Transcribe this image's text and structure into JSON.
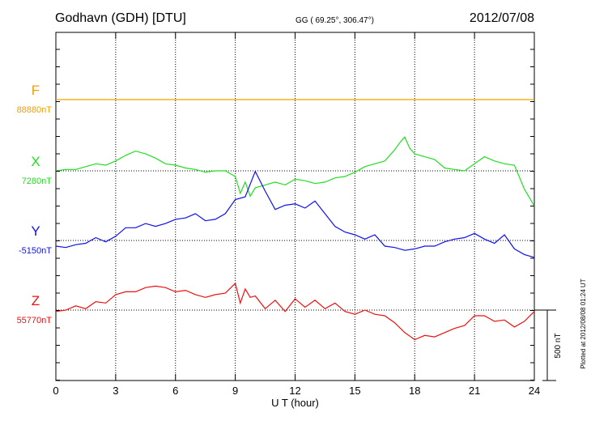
{
  "header": {
    "station": "Godhavn (GDH)  [DTU]",
    "coords": "GG ( 69.25°, 306.47°)",
    "date": "2012/07/08"
  },
  "side_note": "Plotted at 2012/08/08 01:24 UT",
  "chart_data": {
    "type": "line",
    "xlabel": "U T (hour)",
    "xlim": [
      0,
      24
    ],
    "x_ticks": [
      "0",
      "3",
      "6",
      "9",
      "12",
      "15",
      "18",
      "21",
      "24"
    ],
    "scale_bar": {
      "label": "500 nT",
      "value_nT": 500
    },
    "series": [
      {
        "name": "F",
        "baseline_label": "88880nT",
        "baseline_nT": 88880,
        "color": "#f0a000",
        "x": [
          0,
          24
        ],
        "y": [
          88880,
          88880
        ]
      },
      {
        "name": "X",
        "baseline_label": "7280nT",
        "baseline_nT": 7280,
        "color": "#22dd22",
        "x": [
          0,
          0.5,
          1,
          1.5,
          2,
          2.5,
          3,
          3.5,
          4,
          4.5,
          5,
          5.5,
          6,
          6.5,
          7,
          7.5,
          8,
          8.5,
          9,
          9.25,
          9.5,
          9.75,
          10,
          10.5,
          11,
          11.5,
          12,
          12.5,
          13,
          13.5,
          14,
          14.5,
          15,
          15.5,
          16,
          16.5,
          17,
          17.25,
          17.5,
          17.75,
          18,
          18.5,
          19,
          19.5,
          20,
          20.5,
          21,
          21.5,
          22,
          22.5,
          23,
          23.5,
          24
        ],
        "y": [
          7280,
          7290,
          7290,
          7310,
          7330,
          7320,
          7350,
          7390,
          7420,
          7400,
          7370,
          7330,
          7320,
          7300,
          7290,
          7270,
          7280,
          7280,
          7240,
          7120,
          7200,
          7100,
          7160,
          7180,
          7200,
          7180,
          7220,
          7210,
          7190,
          7200,
          7230,
          7240,
          7270,
          7310,
          7330,
          7350,
          7430,
          7480,
          7520,
          7440,
          7400,
          7380,
          7360,
          7300,
          7290,
          7280,
          7330,
          7380,
          7350,
          7330,
          7320,
          7150,
          7030
        ]
      },
      {
        "name": "Y",
        "baseline_label": "-5150nT",
        "baseline_nT": -5150,
        "color": "#1010ee",
        "x": [
          0,
          0.5,
          1,
          1.5,
          2,
          2.5,
          3,
          3.5,
          4,
          4.5,
          5,
          5.5,
          6,
          6.5,
          7,
          7.5,
          8,
          8.5,
          9,
          9.5,
          10,
          10.5,
          11,
          11.5,
          12,
          12.5,
          13,
          13.5,
          14,
          14.5,
          15,
          15.5,
          16,
          16.5,
          17,
          17.5,
          18,
          18.5,
          19,
          19.5,
          20,
          20.5,
          21,
          21.5,
          22,
          22.5,
          23,
          23.5,
          24
        ],
        "y": [
          -5190,
          -5200,
          -5180,
          -5170,
          -5130,
          -5160,
          -5120,
          -5060,
          -5060,
          -5030,
          -5050,
          -5030,
          -5000,
          -4990,
          -4960,
          -5010,
          -5000,
          -4960,
          -4860,
          -4840,
          -4660,
          -4800,
          -4930,
          -4900,
          -4890,
          -4920,
          -4870,
          -4960,
          -5050,
          -5090,
          -5110,
          -5140,
          -5110,
          -5190,
          -5200,
          -5220,
          -5210,
          -5190,
          -5190,
          -5160,
          -5140,
          -5130,
          -5100,
          -5140,
          -5170,
          -5110,
          -5210,
          -5250,
          -5270
        ]
      },
      {
        "name": "Z",
        "baseline_label": "55770nT",
        "baseline_nT": 55770,
        "color": "#ee1111",
        "x": [
          0,
          0.5,
          1,
          1.5,
          2,
          2.5,
          3,
          3.5,
          4,
          4.5,
          5,
          5.5,
          6,
          6.5,
          7,
          7.5,
          8,
          8.5,
          9,
          9.25,
          9.5,
          9.75,
          10,
          10.5,
          11,
          11.5,
          12,
          12.5,
          13,
          13.5,
          14,
          14.5,
          15,
          15.5,
          16,
          16.5,
          17,
          17.5,
          18,
          18.5,
          19,
          19.5,
          20,
          20.5,
          21,
          21.5,
          22,
          22.5,
          23,
          23.5,
          24
        ],
        "y": [
          55760,
          55770,
          55800,
          55780,
          55830,
          55820,
          55880,
          55900,
          55900,
          55930,
          55940,
          55930,
          55900,
          55910,
          55880,
          55860,
          55880,
          55890,
          55960,
          55820,
          55920,
          55860,
          55870,
          55780,
          55840,
          55760,
          55850,
          55790,
          55840,
          55780,
          55820,
          55760,
          55740,
          55770,
          55740,
          55730,
          55680,
          55610,
          55560,
          55590,
          55580,
          55610,
          55640,
          55660,
          55730,
          55730,
          55690,
          55700,
          55650,
          55690,
          55760
        ]
      }
    ]
  }
}
